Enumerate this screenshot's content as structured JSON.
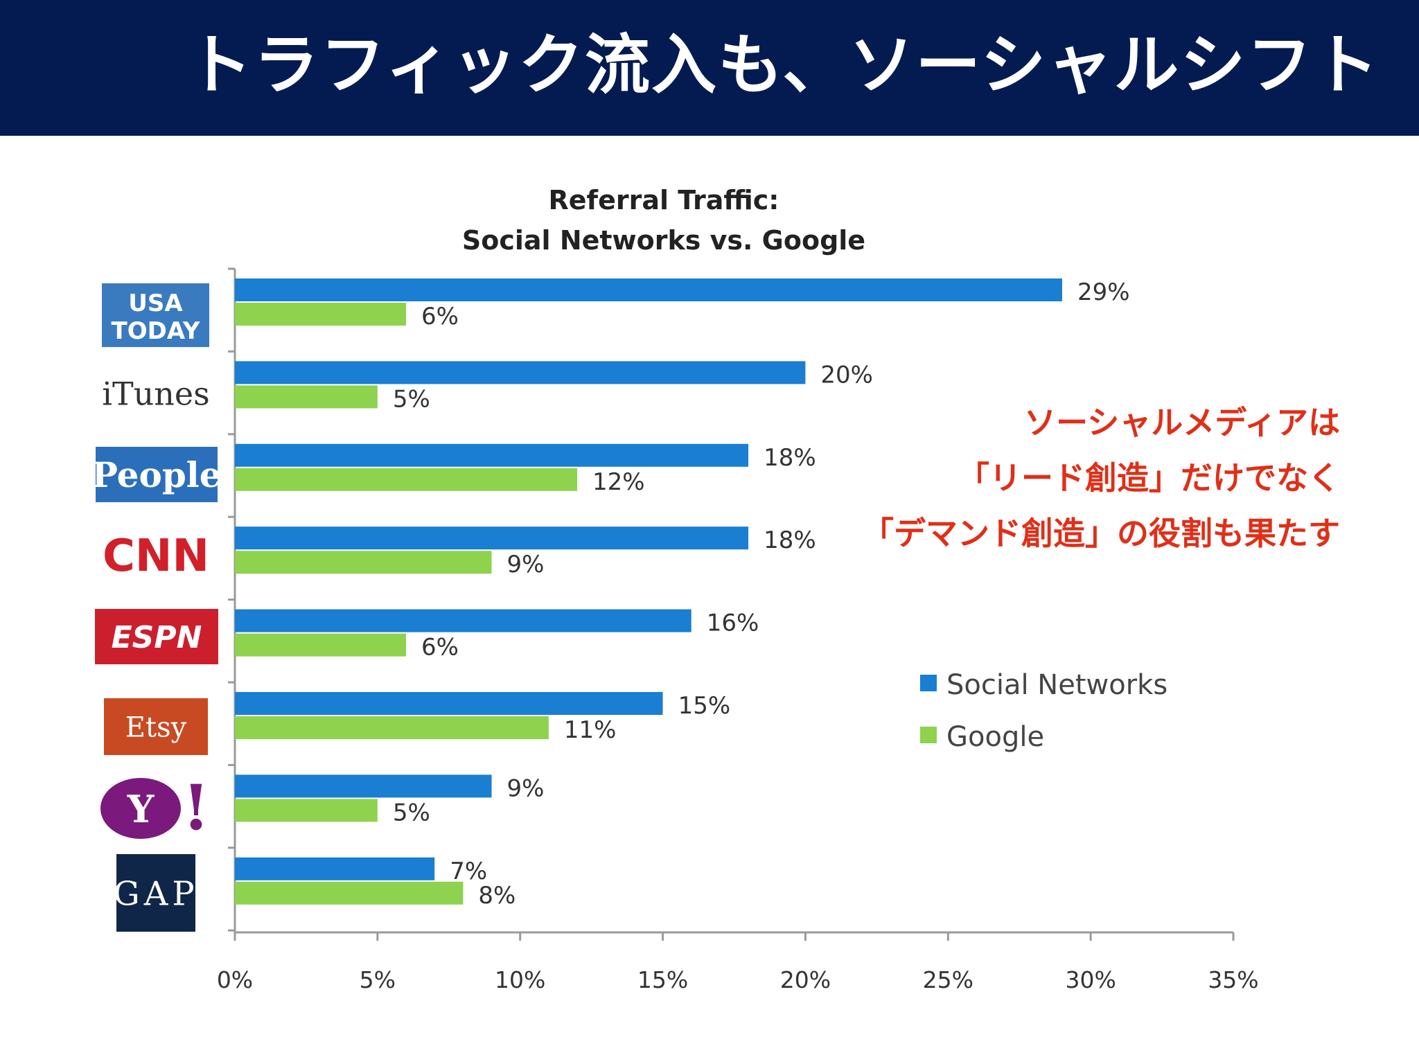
{
  "slide": {
    "title": "トラフィック流入も、ソーシャルシフト"
  },
  "callout": {
    "lines": [
      "ソーシャルメディアは",
      "「リード創造」だけでなく",
      "「デマンド創造」の役割も果たす"
    ]
  },
  "colors": {
    "header_bg": "#031b50",
    "social": "#1a7ed2",
    "google": "#8ed24e",
    "callout": "#e02f18"
  },
  "chart_data": {
    "type": "bar",
    "orientation": "horizontal",
    "title": [
      "Referral Traffic:",
      "Social Networks vs. Google"
    ],
    "categories": [
      "USA TODAY",
      "iTunes",
      "People",
      "CNN",
      "ESPN",
      "Etsy",
      "Yahoo!",
      "GAP"
    ],
    "logo_text": [
      "USA TODAY",
      "iTunes",
      "People",
      "CNN",
      "ESPN",
      "Etsy",
      "Y!",
      "GAP"
    ],
    "series": [
      {
        "name": "Social Networks",
        "values": [
          29,
          20,
          18,
          18,
          16,
          15,
          9,
          7
        ],
        "labels": [
          "29%",
          "20%",
          "18%",
          "18%",
          "16%",
          "15%",
          "9%",
          "7%"
        ]
      },
      {
        "name": "Google",
        "values": [
          6,
          5,
          12,
          9,
          6,
          11,
          5,
          8
        ],
        "labels": [
          "6%",
          "5%",
          "12%",
          "9%",
          "6%",
          "11%",
          "5%",
          "8%"
        ]
      }
    ],
    "xlim": [
      0,
      35
    ],
    "xticks": [
      0,
      5,
      10,
      15,
      20,
      25,
      30,
      35
    ],
    "xtick_labels": [
      "0%",
      "5%",
      "10%",
      "15%",
      "20%",
      "25%",
      "30%",
      "35%"
    ],
    "legend": [
      "Social Networks",
      "Google"
    ],
    "legend_position": "right",
    "grid": false
  }
}
